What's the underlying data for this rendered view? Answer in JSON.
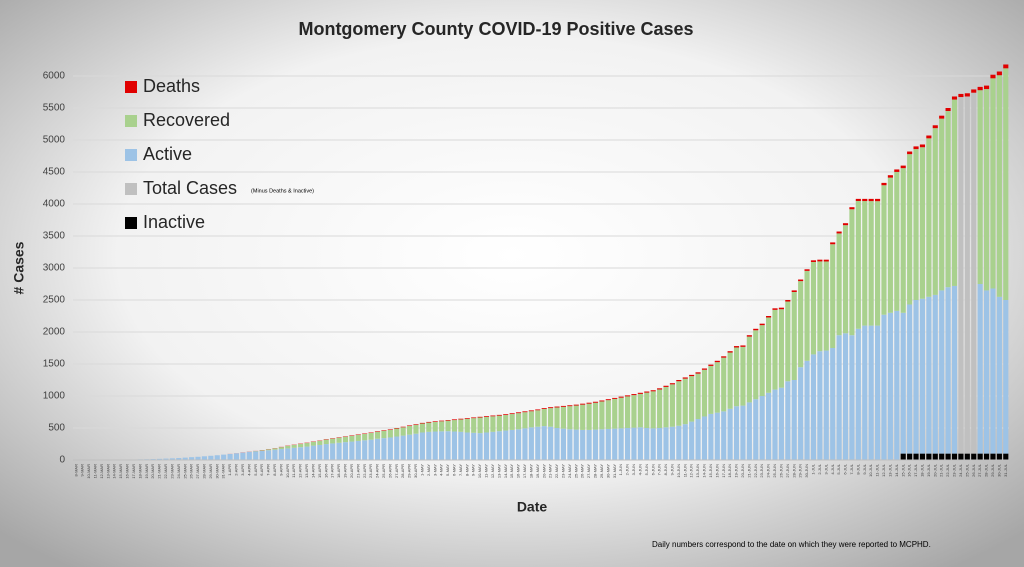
{
  "chart_data": {
    "type": "stacked_bar",
    "title": "Montgomery County COVID-19 Positive Cases",
    "x_label": "Date",
    "y_label": "# Cases",
    "legend_note": "(Minus Deaths & Inactive)",
    "footnote": "Daily numbers correspond to the date on which they were reported to MCPHD.",
    "legend": "upper left",
    "grid": true,
    "ylim": [
      0,
      6200
    ],
    "yticks": [
      0,
      500,
      1000,
      1500,
      2000,
      2500,
      3000,
      3500,
      4000,
      4500,
      5000,
      5500,
      6000
    ],
    "categories": [
      "8-MAR",
      "9-MAR",
      "10-MAR",
      "11-MAR",
      "12-MAR",
      "13-MAR",
      "14-MAR",
      "15-MAR",
      "16-MAR",
      "17-MAR",
      "18-MAR",
      "19-MAR",
      "20-MAR",
      "21-MAR",
      "22-MAR",
      "23-MAR",
      "24-MAR",
      "25-MAR",
      "26-MAR",
      "27-MAR",
      "28-MAR",
      "29-MAR",
      "30-MAR",
      "31-MAR",
      "1-APR",
      "2-APR",
      "3-APR",
      "4-APR",
      "5-APR",
      "6-APR",
      "7-APR",
      "8-APR",
      "9-APR",
      "10-APR",
      "11-APR",
      "12-APR",
      "13-APR",
      "14-APR",
      "15-APR",
      "16-APR",
      "17-APR",
      "18-APR",
      "19-APR",
      "20-APR",
      "21-APR",
      "22-APR",
      "23-APR",
      "24-APR",
      "25-APR",
      "26-APR",
      "27-APR",
      "28-APR",
      "29-APR",
      "30-APR",
      "1-MAY",
      "2-MAY",
      "3-MAY",
      "4-MAY",
      "5-MAY",
      "6-MAY",
      "7-MAY",
      "8-MAY",
      "9-MAY",
      "10-MAY",
      "11-MAY",
      "12-MAY",
      "13-MAY",
      "14-MAY",
      "15-MAY",
      "16-MAY",
      "17-MAY",
      "18-MAY",
      "19-MAY",
      "20-MAY",
      "21-MAY",
      "22-MAY",
      "23-MAY",
      "24-MAY",
      "25-MAY",
      "26-MAY",
      "27-MAY",
      "28-MAY",
      "29-MAY",
      "30-MAY",
      "31-MAY",
      "1-JUN",
      "2-JUN",
      "3-JUN",
      "4-JUN",
      "5-JUN",
      "6-JUN",
      "7-JUN",
      "8-JUN",
      "9-JUN",
      "10-JUN",
      "11-JUN",
      "12-JUN",
      "13-JUN",
      "14-JUN",
      "15-JUN",
      "16-JUN",
      "17-JUN",
      "18-JUN",
      "19-JUN",
      "20-JUN",
      "21-JUN",
      "22-JUN",
      "23-JUN",
      "24-JUN",
      "25-JUN",
      "26-JUN",
      "27-JUN",
      "28-JUN",
      "29-JUN",
      "30-JUN",
      "1-JUL",
      "2-JUL",
      "3-JUL",
      "4-JUL",
      "5-JUL",
      "6-JUL",
      "7-JUL",
      "8-JUL",
      "9-JUL",
      "10-JUL",
      "11-JUL",
      "12-JUL",
      "13-JUL",
      "14-JUL",
      "15-JUL",
      "16-JUL",
      "17-JUL",
      "18-JUL",
      "19-JUL",
      "20-JUL",
      "21-JUL",
      "22-JUL",
      "23-JUL",
      "24-JUL",
      "25-JUL",
      "26-JUL",
      "27-JUL",
      "28-JUL",
      "29-JUL",
      "30-JUL",
      "31-JUL"
    ],
    "series": [
      {
        "name": "Deaths",
        "color": "#e00000",
        "values": [
          0,
          0,
          0,
          0,
          0,
          0,
          0,
          0,
          0,
          0,
          0,
          0,
          0,
          0,
          0,
          0,
          0,
          0,
          0,
          0,
          0,
          0,
          0,
          0,
          1,
          1,
          2,
          2,
          2,
          3,
          3,
          3,
          4,
          4,
          4,
          5,
          5,
          5,
          5,
          6,
          6,
          6,
          6,
          7,
          7,
          7,
          7,
          8,
          8,
          8,
          8,
          9,
          9,
          9,
          10,
          10,
          10,
          10,
          10,
          11,
          11,
          11,
          11,
          11,
          12,
          12,
          12,
          12,
          12,
          13,
          13,
          13,
          13,
          13,
          14,
          14,
          14,
          14,
          14,
          15,
          15,
          15,
          15,
          15,
          15,
          16,
          16,
          16,
          17,
          17,
          17,
          18,
          18,
          18,
          19,
          19,
          19,
          20,
          20,
          20,
          21,
          21,
          21,
          22,
          22,
          22,
          23,
          23,
          23,
          24,
          24,
          24,
          25,
          25,
          25,
          26,
          27,
          28,
          29,
          30,
          31,
          32,
          33,
          34,
          35,
          36,
          37,
          38,
          39,
          40,
          41,
          42,
          43,
          44,
          45,
          46,
          47,
          48,
          49,
          50,
          51,
          52,
          54,
          56,
          58,
          60
        ]
      },
      {
        "name": "Recovered",
        "color": "#a9d18e",
        "values": [
          0,
          0,
          0,
          0,
          0,
          0,
          0,
          0,
          0,
          0,
          0,
          0,
          0,
          0,
          0,
          0,
          0,
          0,
          0,
          0,
          0,
          0,
          0,
          0,
          0,
          0,
          0,
          0,
          5,
          10,
          15,
          22,
          30,
          40,
          45,
          50,
          55,
          60,
          65,
          70,
          75,
          80,
          85,
          90,
          95,
          100,
          105,
          110,
          115,
          120,
          125,
          130,
          135,
          140,
          140,
          145,
          150,
          157,
          165,
          179,
          194,
          214,
          229,
          244,
          243,
          243,
          243,
          243,
          248,
          252,
          252,
          252,
          257,
          267,
          291,
          321,
          341,
          361,
          376,
          395,
          410,
          420,
          435,
          450,
          465,
          479,
          494,
          509,
          523,
          553,
          578,
          602,
          632,
          662,
          696,
          711,
          711,
          710,
          730,
          750,
          789,
          839,
          879,
          918,
          918,
          1028,
          1077,
          1107,
          1177,
          1246,
          1226,
          1246,
          1375,
          1345,
          1405,
          1444,
          1403,
          1392,
          1621,
          1590,
          1689,
          1968,
          1997,
          1946,
          1945,
          1944,
          2023,
          2112,
          2171,
          2260,
          2349,
          2358,
          2367,
          2476,
          2605,
          2684,
          2753,
          2912,
          null,
          null,
          null,
          3028,
          3146,
          3284,
          3462,
          3620
        ]
      },
      {
        "name": "Active",
        "color": "#9dc3e6",
        "values": [
          1,
          1,
          2,
          2,
          3,
          3,
          4,
          5,
          6,
          8,
          10,
          12,
          15,
          18,
          22,
          26,
          31,
          37,
          44,
          50,
          58,
          66,
          74,
          84,
          94,
          104,
          116,
          128,
          135,
          142,
          152,
          160,
          171,
          181,
          191,
          200,
          210,
          225,
          235,
          249,
          259,
          269,
          279,
          288,
          298,
          308,
          318,
          332,
          342,
          352,
          367,
          381,
          396,
          411,
          430,
          440,
          445,
          448,
          450,
          445,
          440,
          430,
          425,
          420,
          430,
          440,
          450,
          460,
          470,
          480,
          495,
          510,
          520,
          530,
          520,
          500,
          490,
          480,
          475,
          470,
          470,
          475,
          480,
          485,
          490,
          495,
          500,
          505,
          510,
          500,
          495,
          500,
          510,
          520,
          535,
          560,
          600,
          640,
          680,
          720,
          740,
          760,
          800,
          840,
          850,
          900,
          950,
          1000,
          1050,
          1100,
          1130,
          1230,
          1250,
          1450,
          1550,
          1650,
          1700,
          1710,
          1750,
          1950,
          1980,
          1950,
          2050,
          2100,
          2100,
          2100,
          2270,
          2300,
          2330,
          2200,
          2330,
          2400,
          2420,
          2450,
          2480,
          2550,
          2600,
          2620,
          null,
          null,
          null,
          2650,
          2550,
          2580,
          2450,
          2400
        ]
      },
      {
        "name": "Total Cases",
        "color": "#c0c0c0",
        "values": [
          null,
          null,
          null,
          null,
          null,
          null,
          null,
          null,
          null,
          null,
          null,
          null,
          null,
          null,
          null,
          null,
          null,
          null,
          null,
          null,
          null,
          null,
          null,
          null,
          null,
          null,
          null,
          null,
          null,
          null,
          null,
          null,
          null,
          null,
          null,
          null,
          null,
          null,
          null,
          null,
          null,
          null,
          null,
          null,
          null,
          null,
          null,
          null,
          null,
          null,
          null,
          null,
          null,
          null,
          null,
          null,
          null,
          null,
          null,
          null,
          null,
          null,
          null,
          null,
          null,
          null,
          null,
          null,
          null,
          null,
          null,
          null,
          null,
          null,
          null,
          null,
          null,
          null,
          null,
          null,
          null,
          null,
          null,
          null,
          null,
          null,
          null,
          null,
          null,
          null,
          null,
          null,
          null,
          null,
          null,
          null,
          null,
          null,
          null,
          null,
          null,
          null,
          null,
          null,
          null,
          null,
          null,
          null,
          null,
          null,
          null,
          null,
          null,
          null,
          null,
          null,
          null,
          null,
          null,
          null,
          null,
          null,
          null,
          null,
          null,
          null,
          null,
          null,
          null,
          null,
          null,
          null,
          null,
          null,
          null,
          null,
          null,
          null,
          5571,
          5580,
          5639,
          null,
          null,
          null,
          null,
          null
        ]
      },
      {
        "name": "Inactive",
        "color": "#000000",
        "values": [
          null,
          null,
          null,
          null,
          null,
          null,
          null,
          null,
          null,
          null,
          null,
          null,
          null,
          null,
          null,
          null,
          null,
          null,
          null,
          null,
          null,
          null,
          null,
          null,
          null,
          null,
          null,
          null,
          null,
          null,
          null,
          null,
          null,
          null,
          null,
          null,
          null,
          null,
          null,
          null,
          null,
          null,
          null,
          null,
          null,
          null,
          null,
          null,
          null,
          null,
          null,
          null,
          null,
          null,
          null,
          null,
          null,
          null,
          null,
          null,
          null,
          null,
          null,
          null,
          null,
          null,
          null,
          null,
          null,
          null,
          null,
          null,
          null,
          null,
          null,
          null,
          null,
          null,
          null,
          null,
          null,
          null,
          null,
          null,
          null,
          null,
          null,
          null,
          null,
          null,
          null,
          null,
          null,
          null,
          null,
          null,
          null,
          null,
          null,
          null,
          null,
          null,
          null,
          null,
          null,
          null,
          null,
          null,
          null,
          null,
          null,
          null,
          null,
          null,
          null,
          null,
          null,
          null,
          null,
          null,
          null,
          null,
          null,
          null,
          null,
          null,
          null,
          null,
          null,
          100,
          100,
          100,
          100,
          100,
          100,
          100,
          100,
          100,
          100,
          100,
          100,
          100,
          100,
          100,
          100,
          100
        ]
      }
    ]
  }
}
